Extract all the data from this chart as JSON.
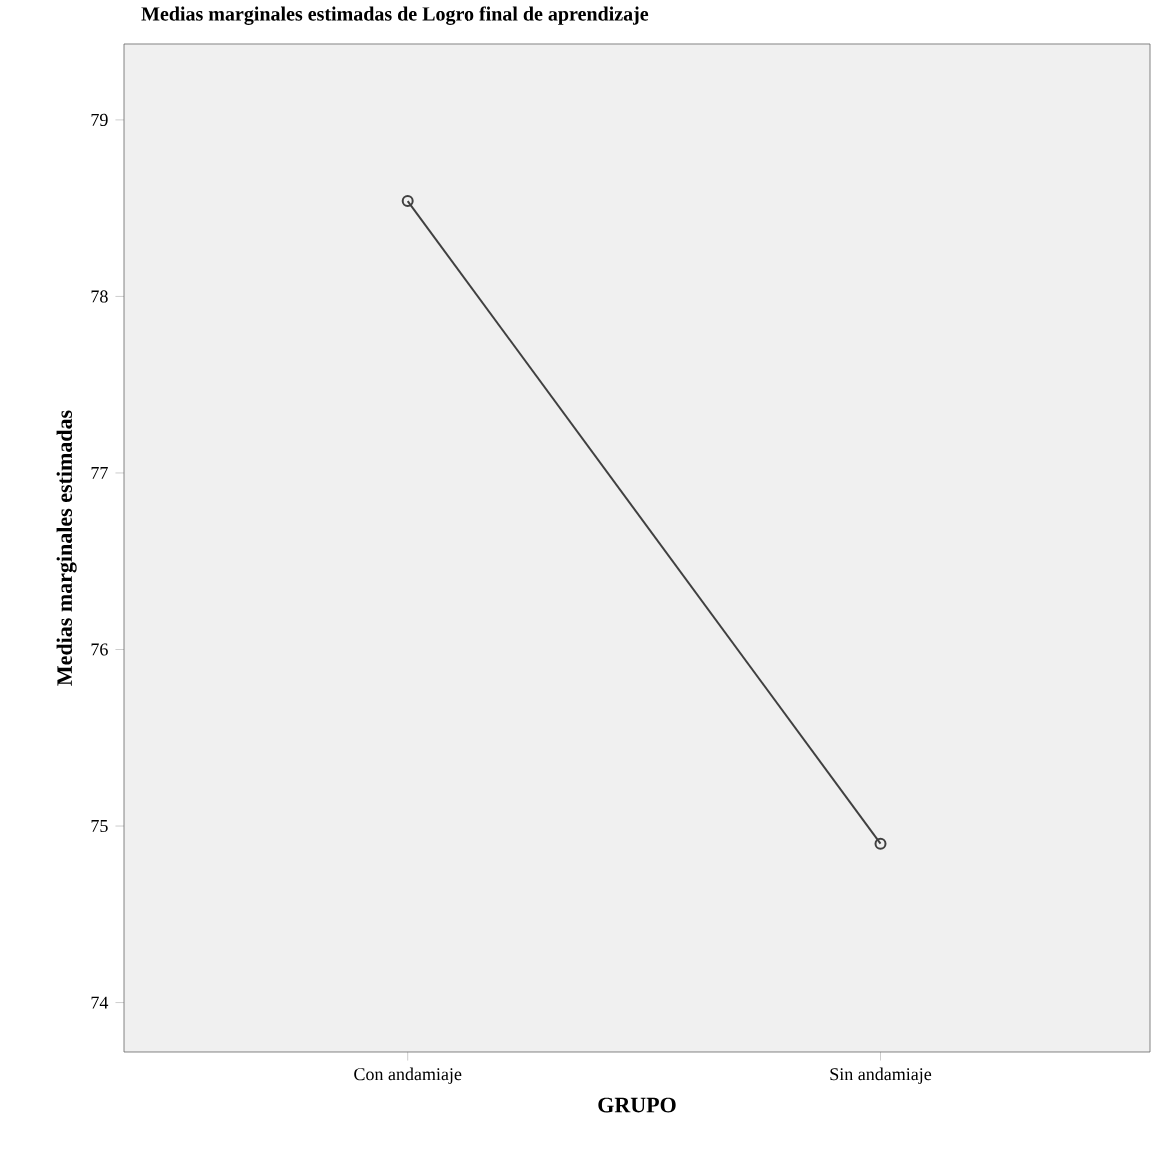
{
  "chart_data": {
    "type": "line",
    "title": "Medias marginales estimadas de Logro final de aprendizaje",
    "xlabel": "GRUPO",
    "ylabel": "Medias marginales estimadas",
    "categories": [
      "Con andamiaje",
      "Sin andamiaje"
    ],
    "series": [
      {
        "color": "#404040",
        "values": [
          78.54,
          74.9
        ]
      }
    ],
    "ylim": [
      73.72,
      79.43
    ],
    "yticks": [
      74,
      75,
      76,
      77,
      78,
      79
    ],
    "marker": "circle",
    "grid": false
  }
}
